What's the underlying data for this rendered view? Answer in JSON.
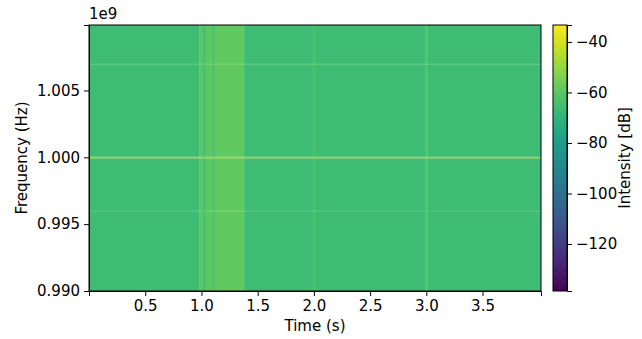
{
  "chart_data": {
    "type": "heatmap",
    "x_label": "Time (s)",
    "y_label": "Frequency (Hz)",
    "y_offset": "1e9",
    "xlim": [
      0,
      4.02
    ],
    "xticks": [
      0.5,
      {
        "value": 1.0,
        "label": "1.0"
      },
      1.5,
      {
        "value": 2.0,
        "label": "2.0"
      },
      2.5,
      {
        "value": 3.0,
        "label": "3.0"
      },
      3.5
    ],
    "ylim": [
      990000000,
      1009900000
    ],
    "yticks": [
      {
        "value": 990000000,
        "label": "0.990"
      },
      {
        "value": 995000000,
        "label": "0.995"
      },
      {
        "value": 1000000000,
        "label": "1.000"
      },
      {
        "value": 1005000000,
        "label": "1.005"
      }
    ],
    "x_edges": [
      0,
      0.98,
      1.0,
      1.04,
      1.1,
      1.12,
      1.38,
      1.99,
      2.01,
      2.99,
      3.01,
      4.02
    ],
    "y_edges": [
      990000000,
      995950000,
      996050000,
      999930000,
      1000070000,
      1006950000,
      1007050000,
      1009900000
    ],
    "values": [
      [
        -66,
        -61,
        -63,
        -60,
        -63,
        -59,
        -66,
        -63,
        -66,
        -63,
        -66
      ],
      [
        -66,
        -61,
        -63,
        -60,
        -57,
        -57,
        -66,
        -63,
        -66,
        -63,
        -66
      ],
      [
        -66,
        -61,
        -63,
        -60,
        -63,
        -59,
        -66,
        -63,
        -66,
        -63,
        -66
      ],
      [
        -52,
        -51,
        -52,
        -51,
        -52,
        -50,
        -52,
        -52,
        -52,
        -52,
        -52
      ],
      [
        -66,
        -61,
        -63,
        -60,
        -63,
        -59,
        -66,
        -63,
        -66,
        -63,
        -66
      ],
      [
        -64,
        -60,
        -62,
        -59,
        -62,
        -58,
        -64,
        -62,
        -64,
        -62,
        -64
      ],
      [
        -66,
        -61,
        -63,
        -60,
        -63,
        -59,
        -66,
        -63,
        -66,
        -63,
        -66
      ]
    ],
    "colorbar": {
      "label": "Intensity [dB]",
      "lim": [
        -138.6,
        -33.3
      ],
      "ticks": [
        {
          "value": -40,
          "label": "−40"
        },
        {
          "value": -60,
          "label": "−60"
        },
        {
          "value": -80,
          "label": "−80"
        },
        {
          "value": -100,
          "label": "−100"
        },
        {
          "value": -120,
          "label": "−120"
        }
      ]
    }
  }
}
